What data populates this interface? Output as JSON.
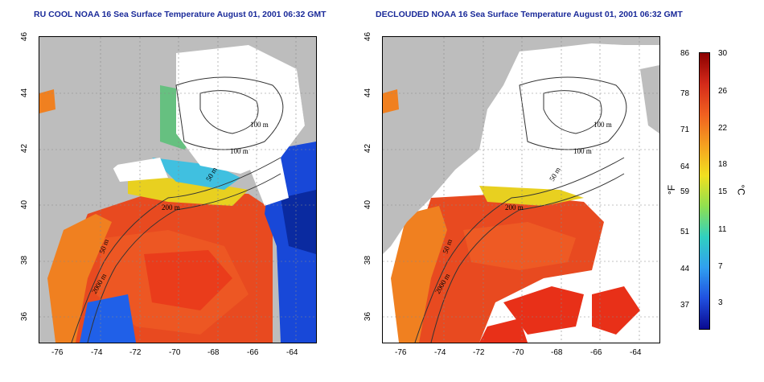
{
  "panels": [
    {
      "title": "RU COOL NOAA 16 Sea Surface Temperature August 01, 2001 06:32 GMT"
    },
    {
      "title": "DECLOUDED NOAA 16 Sea Surface Temperature August 01, 2001 06:32 GMT"
    }
  ],
  "axes": {
    "x_ticks": [
      "-76",
      "-74",
      "-72",
      "-70",
      "-68",
      "-66",
      "-64"
    ],
    "y_ticks": [
      "46",
      "44",
      "42",
      "40",
      "38",
      "36"
    ]
  },
  "bathymetry_labels": [
    "100 m",
    "100 m",
    "50 m",
    "200 m",
    "50 m",
    "2000 m"
  ],
  "colorbar": {
    "fahrenheit_ticks": [
      "86",
      "78",
      "71",
      "64",
      "59",
      "51",
      "44",
      "37"
    ],
    "celsius_ticks": [
      "30",
      "26",
      "22",
      "18",
      "15",
      "11",
      "7",
      "3"
    ],
    "fahrenheit_unit": "°F",
    "celsius_unit": "°C",
    "colors": [
      "#8b0000",
      "#d42a1a",
      "#f06020",
      "#f5a020",
      "#f0e020",
      "#90e050",
      "#30d0c0",
      "#30a0f0",
      "#2050e0",
      "#0a0a90"
    ]
  },
  "colors": {
    "land": "#bdbdbd",
    "cloud_mask": "#ffffff",
    "warm_water": "#e8401f",
    "title": "#1a2a99"
  }
}
